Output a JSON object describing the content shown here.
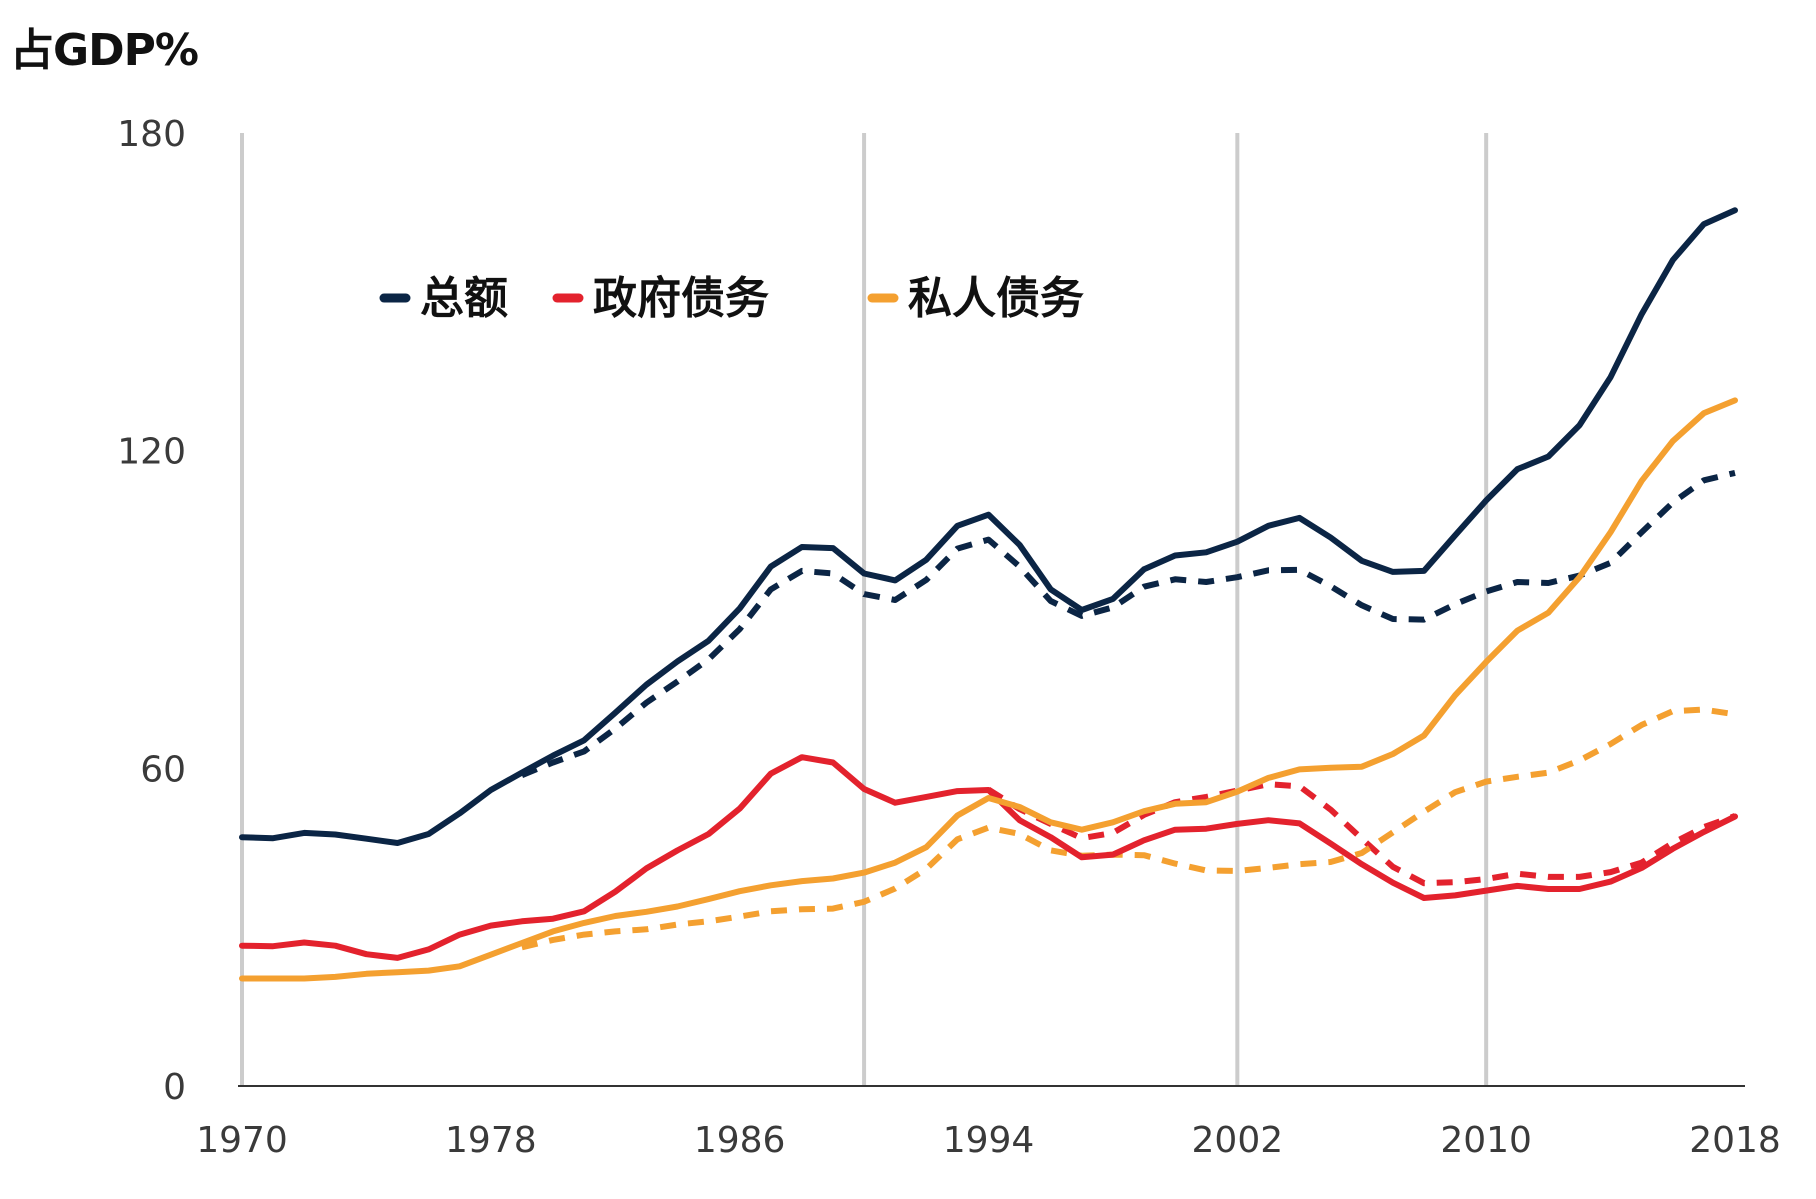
{
  "colors": {
    "total": "#0b2545",
    "government": "#e3222d",
    "private": "#f4a030",
    "grid": "#cccccc",
    "axis": "#333333"
  },
  "chart_data": {
    "type": "line",
    "unit_label": "占GDP%",
    "ylim": [
      0,
      180
    ],
    "xlim": [
      1970,
      2018
    ],
    "yticks": [
      0,
      60,
      120,
      180
    ],
    "xticks": [
      1970,
      1978,
      1986,
      1994,
      2002,
      2010,
      2018
    ],
    "vertical_gridlines": [
      1970,
      1990,
      2002,
      2010
    ],
    "legend": [
      {
        "key": "total",
        "label": "总额"
      },
      {
        "key": "government",
        "label": "政府债务"
      },
      {
        "key": "private",
        "label": "私人债务"
      }
    ],
    "series": [
      {
        "name": "总额",
        "color_key": "total",
        "style": "solid",
        "x": [
          1970,
          1971,
          1972,
          1973,
          1974,
          1975,
          1976,
          1977,
          1978,
          1979,
          1980,
          1981,
          1982,
          1983,
          1984,
          1985,
          1986,
          1987,
          1988,
          1989,
          1990,
          1991,
          1992,
          1993,
          1994,
          1995,
          1996,
          1997,
          1998,
          1999,
          2000,
          2001,
          2002,
          2003,
          2004,
          2005,
          2006,
          2007,
          2008,
          2009,
          2010,
          2011,
          2012,
          2013,
          2014,
          2015,
          2016,
          2017,
          2018
        ],
        "y": [
          47,
          46.8,
          47.8,
          47.5,
          46.7,
          45.9,
          47.6,
          51.5,
          55.9,
          59.2,
          62.4,
          65.3,
          70.5,
          75.8,
          80.2,
          84.1,
          90.2,
          98.1,
          101.8,
          101.6,
          96.8,
          95.5,
          99.4,
          105.8,
          107.9,
          102.2,
          93.8,
          89.9,
          92.0,
          97.6,
          100.2,
          100.8,
          102.8,
          105.8,
          107.3,
          103.6,
          99.2,
          97.1,
          97.3,
          104.0,
          110.6,
          116.5,
          118.9,
          124.8,
          133.9,
          145.8,
          156.0,
          162.8,
          165.4
        ]
      },
      {
        "name": "政府债务",
        "color_key": "government",
        "style": "solid",
        "x": [
          1970,
          1971,
          1972,
          1973,
          1974,
          1975,
          1976,
          1977,
          1978,
          1979,
          1980,
          1981,
          1982,
          1983,
          1984,
          1985,
          1986,
          1987,
          1988,
          1989,
          1990,
          1991,
          1992,
          1993,
          1994,
          1995,
          1996,
          1997,
          1998,
          1999,
          2000,
          2001,
          2002,
          2003,
          2004,
          2005,
          2006,
          2007,
          2008,
          2009,
          2010,
          2011,
          2012,
          2013,
          2014,
          2015,
          2016,
          2017,
          2018
        ],
        "y": [
          26.5,
          26.4,
          27.1,
          26.5,
          24.9,
          24.2,
          25.8,
          28.6,
          30.3,
          31.1,
          31.6,
          33.0,
          36.7,
          41.1,
          44.5,
          47.6,
          52.4,
          59.0,
          62.1,
          61.1,
          56.1,
          53.5,
          54.6,
          55.7,
          55.9,
          50.2,
          47.0,
          43.2,
          43.7,
          46.4,
          48.4,
          48.6,
          49.5,
          50.2,
          49.6,
          45.8,
          41.9,
          38.4,
          35.5,
          36.0,
          36.9,
          37.8,
          37.2,
          37.2,
          38.6,
          41.2,
          44.8,
          48.0,
          50.9
        ]
      },
      {
        "name": "私人债务",
        "color_key": "private",
        "style": "solid",
        "x": [
          1970,
          1971,
          1972,
          1973,
          1974,
          1975,
          1976,
          1977,
          1978,
          1979,
          1980,
          1981,
          1982,
          1983,
          1984,
          1985,
          1986,
          1987,
          1988,
          1989,
          1990,
          1991,
          1992,
          1993,
          1994,
          1995,
          1996,
          1997,
          1998,
          1999,
          2000,
          2001,
          2002,
          2003,
          2004,
          2005,
          2006,
          2007,
          2008,
          2009,
          2010,
          2011,
          2012,
          2013,
          2014,
          2015,
          2016,
          2017,
          2018
        ],
        "y": [
          20.3,
          20.3,
          20.3,
          20.6,
          21.2,
          21.5,
          21.8,
          22.6,
          24.8,
          27.0,
          29.2,
          30.8,
          32.1,
          32.9,
          33.9,
          35.3,
          36.8,
          37.9,
          38.7,
          39.2,
          40.3,
          42.2,
          45.1,
          51.1,
          54.4,
          52.7,
          49.8,
          48.4,
          49.8,
          51.9,
          53.3,
          53.6,
          55.6,
          58.2,
          59.8,
          60.1,
          60.3,
          62.7,
          66.2,
          73.8,
          80.1,
          86.0,
          89.4,
          96.1,
          104.6,
          114.3,
          121.8,
          127.1,
          129.5
        ]
      },
      {
        "name": "总额 (dashed)",
        "color_key": "total",
        "style": "dashed",
        "x": [
          1979,
          1980,
          1981,
          1982,
          1983,
          1984,
          1985,
          1986,
          1987,
          1988,
          1989,
          1990,
          1991,
          1992,
          1993,
          1994,
          1995,
          1996,
          1997,
          1998,
          1999,
          2000,
          2001,
          2002,
          2003,
          2004,
          2005,
          2006,
          2007,
          2008,
          2009,
          2010,
          2011,
          2012,
          2013,
          2014,
          2015,
          2016,
          2017,
          2018
        ],
        "y": [
          58.7,
          61.1,
          63.2,
          67.5,
          72.4,
          76.4,
          80.6,
          86.3,
          93.8,
          97.3,
          96.8,
          92.9,
          91.8,
          95.6,
          101.5,
          103.2,
          98.1,
          91.6,
          88.8,
          90.4,
          94.3,
          95.7,
          95.2,
          96.1,
          97.4,
          97.5,
          94.4,
          90.8,
          88.2,
          88.1,
          91.0,
          93.4,
          95.2,
          95.0,
          96.4,
          98.8,
          104.6,
          110.2,
          114.4,
          115.8
        ]
      },
      {
        "name": "政府债务 (dashed)",
        "color_key": "government",
        "style": "dashed",
        "x": [
          1994,
          1995,
          1996,
          1997,
          1998,
          1999,
          2000,
          2001,
          2002,
          2003,
          2004,
          2005,
          2006,
          2007,
          2008,
          2009,
          2010,
          2011,
          2012,
          2013,
          2014,
          2015,
          2016,
          2017,
          2018
        ],
        "y": [
          56.0,
          52.3,
          49.5,
          46.8,
          47.8,
          51.2,
          53.6,
          54.6,
          55.8,
          57.0,
          56.6,
          52.2,
          46.7,
          41.4,
          38.3,
          38.5,
          39.1,
          40.1,
          39.5,
          39.5,
          40.4,
          42.2,
          45.9,
          48.9,
          51.0
        ]
      },
      {
        "name": "私人债务 (dashed)",
        "color_key": "private",
        "style": "dashed",
        "x": [
          1979,
          1980,
          1981,
          1982,
          1983,
          1984,
          1985,
          1986,
          1987,
          1988,
          1989,
          1990,
          1991,
          1992,
          1993,
          1994,
          1995,
          1996,
          1997,
          1998,
          1999,
          2000,
          2001,
          2002,
          2003,
          2004,
          2005,
          2006,
          2007,
          2008,
          2009,
          2010,
          2011,
          2012,
          2013,
          2014,
          2015,
          2016,
          2017,
          2018
        ],
        "y": [
          26.2,
          27.6,
          28.6,
          29.2,
          29.6,
          30.5,
          31.1,
          32.0,
          33.0,
          33.4,
          33.5,
          34.8,
          37.3,
          41.0,
          46.6,
          48.8,
          47.6,
          44.5,
          43.5,
          43.7,
          43.6,
          42.0,
          40.7,
          40.6,
          41.2,
          41.9,
          42.3,
          44.0,
          47.9,
          51.8,
          55.5,
          57.5,
          58.4,
          59.2,
          61.5,
          64.6,
          68.2,
          70.8,
          71.1,
          70.2
        ]
      }
    ]
  }
}
